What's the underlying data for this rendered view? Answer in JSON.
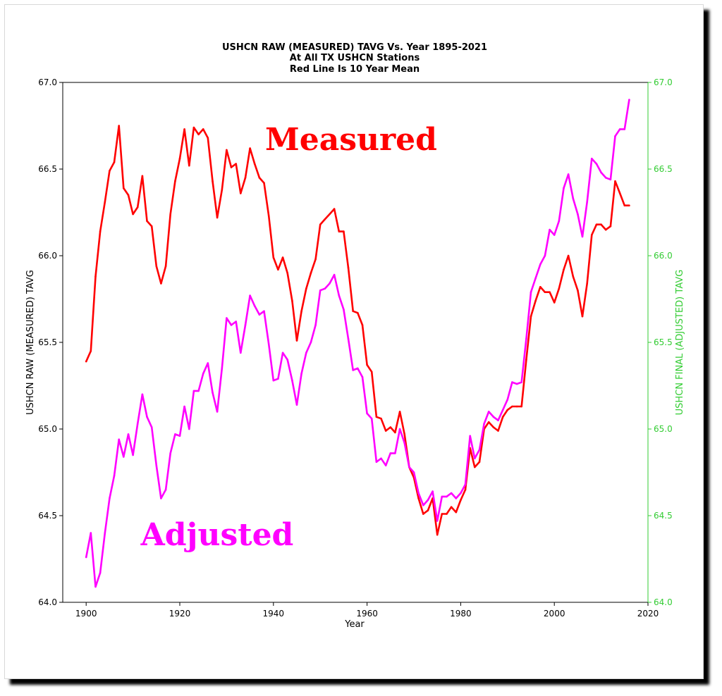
{
  "chart_data": {
    "type": "line",
    "title_lines": [
      "USHCN RAW (MEASURED) TAVG Vs. Year 1895-2021",
      "At All TX USHCN Stations",
      "Red Line Is 10 Year Mean"
    ],
    "xlabel": "Year",
    "ylabel_left": "USHCN RAW (MEASURED) TAVG",
    "ylabel_right": "USHCN FINAL (ADJUSTED) TAVG",
    "xlim": [
      1895,
      2020
    ],
    "ylim": [
      64.0,
      67.0
    ],
    "x_ticks": [
      "1900",
      "1920",
      "1940",
      "1960",
      "1980",
      "2000",
      "2020"
    ],
    "y_ticks": [
      "64.0",
      "64.5",
      "65.0",
      "65.5",
      "66.0",
      "66.5",
      "67.0"
    ],
    "annotations": {
      "measured": "Measured",
      "adjusted": "Adjusted"
    },
    "colors": {
      "measured": "#ff0000",
      "adjusted": "#ff00ff",
      "right_axis": "#33cc33"
    },
    "grid": false,
    "series": [
      {
        "name": "Measured",
        "color": "#ff0000",
        "x": [
          1900,
          1901,
          1902,
          1903,
          1904,
          1905,
          1906,
          1907,
          1908,
          1909,
          1910,
          1911,
          1912,
          1913,
          1914,
          1915,
          1916,
          1917,
          1918,
          1919,
          1920,
          1921,
          1922,
          1923,
          1924,
          1925,
          1926,
          1927,
          1928,
          1929,
          1930,
          1931,
          1932,
          1933,
          1934,
          1935,
          1936,
          1937,
          1938,
          1939,
          1940,
          1941,
          1942,
          1943,
          1944,
          1945,
          1946,
          1947,
          1948,
          1949,
          1950,
          1951,
          1952,
          1953,
          1954,
          1955,
          1956,
          1957,
          1958,
          1959,
          1960,
          1961,
          1962,
          1963,
          1964,
          1965,
          1966,
          1967,
          1968,
          1969,
          1970,
          1971,
          1972,
          1973,
          1974,
          1975,
          1976,
          1977,
          1978,
          1979,
          1980,
          1981,
          1982,
          1983,
          1984,
          1985,
          1986,
          1987,
          1988,
          1989,
          1990,
          1991,
          1992,
          1993,
          1994,
          1995,
          1996,
          1997,
          1998,
          1999,
          2000,
          2001,
          2002,
          2003,
          2004,
          2005,
          2006,
          2007,
          2008,
          2009,
          2010,
          2011,
          2012,
          2013,
          2014,
          2015,
          2016
        ],
        "values": [
          65.39,
          65.45,
          65.88,
          66.14,
          66.31,
          66.49,
          66.54,
          66.75,
          66.39,
          66.35,
          66.24,
          66.28,
          66.46,
          66.2,
          66.17,
          65.94,
          65.84,
          65.94,
          66.24,
          66.43,
          66.56,
          66.73,
          66.52,
          66.74,
          66.7,
          66.73,
          66.68,
          66.43,
          66.22,
          66.38,
          66.61,
          66.51,
          66.53,
          66.36,
          66.45,
          66.62,
          66.53,
          66.45,
          66.42,
          66.23,
          65.99,
          65.92,
          65.99,
          65.9,
          65.74,
          65.51,
          65.68,
          65.81,
          65.9,
          65.98,
          66.18,
          66.21,
          66.24,
          66.27,
          66.14,
          66.14,
          65.93,
          65.68,
          65.67,
          65.6,
          65.37,
          65.33,
          65.07,
          65.06,
          64.99,
          65.01,
          64.98,
          65.1,
          64.97,
          64.78,
          64.72,
          64.6,
          64.51,
          64.53,
          64.6,
          64.39,
          64.51,
          64.51,
          64.55,
          64.52,
          64.59,
          64.65,
          64.89,
          64.78,
          64.81,
          65.0,
          65.04,
          65.01,
          64.99,
          65.07,
          65.11,
          65.13,
          65.13,
          65.13,
          65.4,
          65.65,
          65.74,
          65.82,
          65.79,
          65.79,
          65.73,
          65.81,
          65.92,
          66.0,
          65.88,
          65.8,
          65.65,
          65.84,
          66.12,
          66.18,
          66.18,
          66.15,
          66.17,
          66.43,
          66.36,
          66.29,
          66.29
        ]
      },
      {
        "name": "Adjusted",
        "color": "#ff00ff",
        "x": [
          1900,
          1901,
          1902,
          1903,
          1904,
          1905,
          1906,
          1907,
          1908,
          1909,
          1910,
          1911,
          1912,
          1913,
          1914,
          1915,
          1916,
          1917,
          1918,
          1919,
          1920,
          1921,
          1922,
          1923,
          1924,
          1925,
          1926,
          1927,
          1928,
          1929,
          1930,
          1931,
          1932,
          1933,
          1934,
          1935,
          1936,
          1937,
          1938,
          1939,
          1940,
          1941,
          1942,
          1943,
          1944,
          1945,
          1946,
          1947,
          1948,
          1949,
          1950,
          1951,
          1952,
          1953,
          1954,
          1955,
          1956,
          1957,
          1958,
          1959,
          1960,
          1961,
          1962,
          1963,
          1964,
          1965,
          1966,
          1967,
          1968,
          1969,
          1970,
          1971,
          1972,
          1973,
          1974,
          1975,
          1976,
          1977,
          1978,
          1979,
          1980,
          1981,
          1982,
          1983,
          1984,
          1985,
          1986,
          1987,
          1988,
          1989,
          1990,
          1991,
          1992,
          1993,
          1994,
          1995,
          1996,
          1997,
          1998,
          1999,
          2000,
          2001,
          2002,
          2003,
          2004,
          2005,
          2006,
          2007,
          2008,
          2009,
          2010,
          2011,
          2012,
          2013,
          2014,
          2015,
          2016
        ],
        "values": [
          64.26,
          64.4,
          64.09,
          64.17,
          64.4,
          64.6,
          64.73,
          64.94,
          64.84,
          64.97,
          64.85,
          65.03,
          65.2,
          65.07,
          65.01,
          64.79,
          64.6,
          64.65,
          64.86,
          64.97,
          64.96,
          65.13,
          65.0,
          65.22,
          65.22,
          65.32,
          65.38,
          65.21,
          65.1,
          65.35,
          65.64,
          65.6,
          65.62,
          65.44,
          65.6,
          65.77,
          65.71,
          65.66,
          65.68,
          65.49,
          65.28,
          65.29,
          65.44,
          65.4,
          65.28,
          65.14,
          65.32,
          65.44,
          65.5,
          65.6,
          65.8,
          65.81,
          65.84,
          65.89,
          65.77,
          65.69,
          65.52,
          65.34,
          65.35,
          65.3,
          65.09,
          65.06,
          64.81,
          64.83,
          64.79,
          64.86,
          64.86,
          65.0,
          64.92,
          64.78,
          64.75,
          64.63,
          64.56,
          64.59,
          64.64,
          64.47,
          64.61,
          64.61,
          64.63,
          64.6,
          64.63,
          64.68,
          64.96,
          64.83,
          64.88,
          65.03,
          65.1,
          65.07,
          65.05,
          65.11,
          65.17,
          65.27,
          65.26,
          65.27,
          65.52,
          65.79,
          65.87,
          65.95,
          66.0,
          66.15,
          66.12,
          66.2,
          66.39,
          66.47,
          66.33,
          66.24,
          66.11,
          66.31,
          66.56,
          66.53,
          66.48,
          66.45,
          66.44,
          66.69,
          66.73,
          66.73,
          66.9
        ]
      }
    ]
  }
}
